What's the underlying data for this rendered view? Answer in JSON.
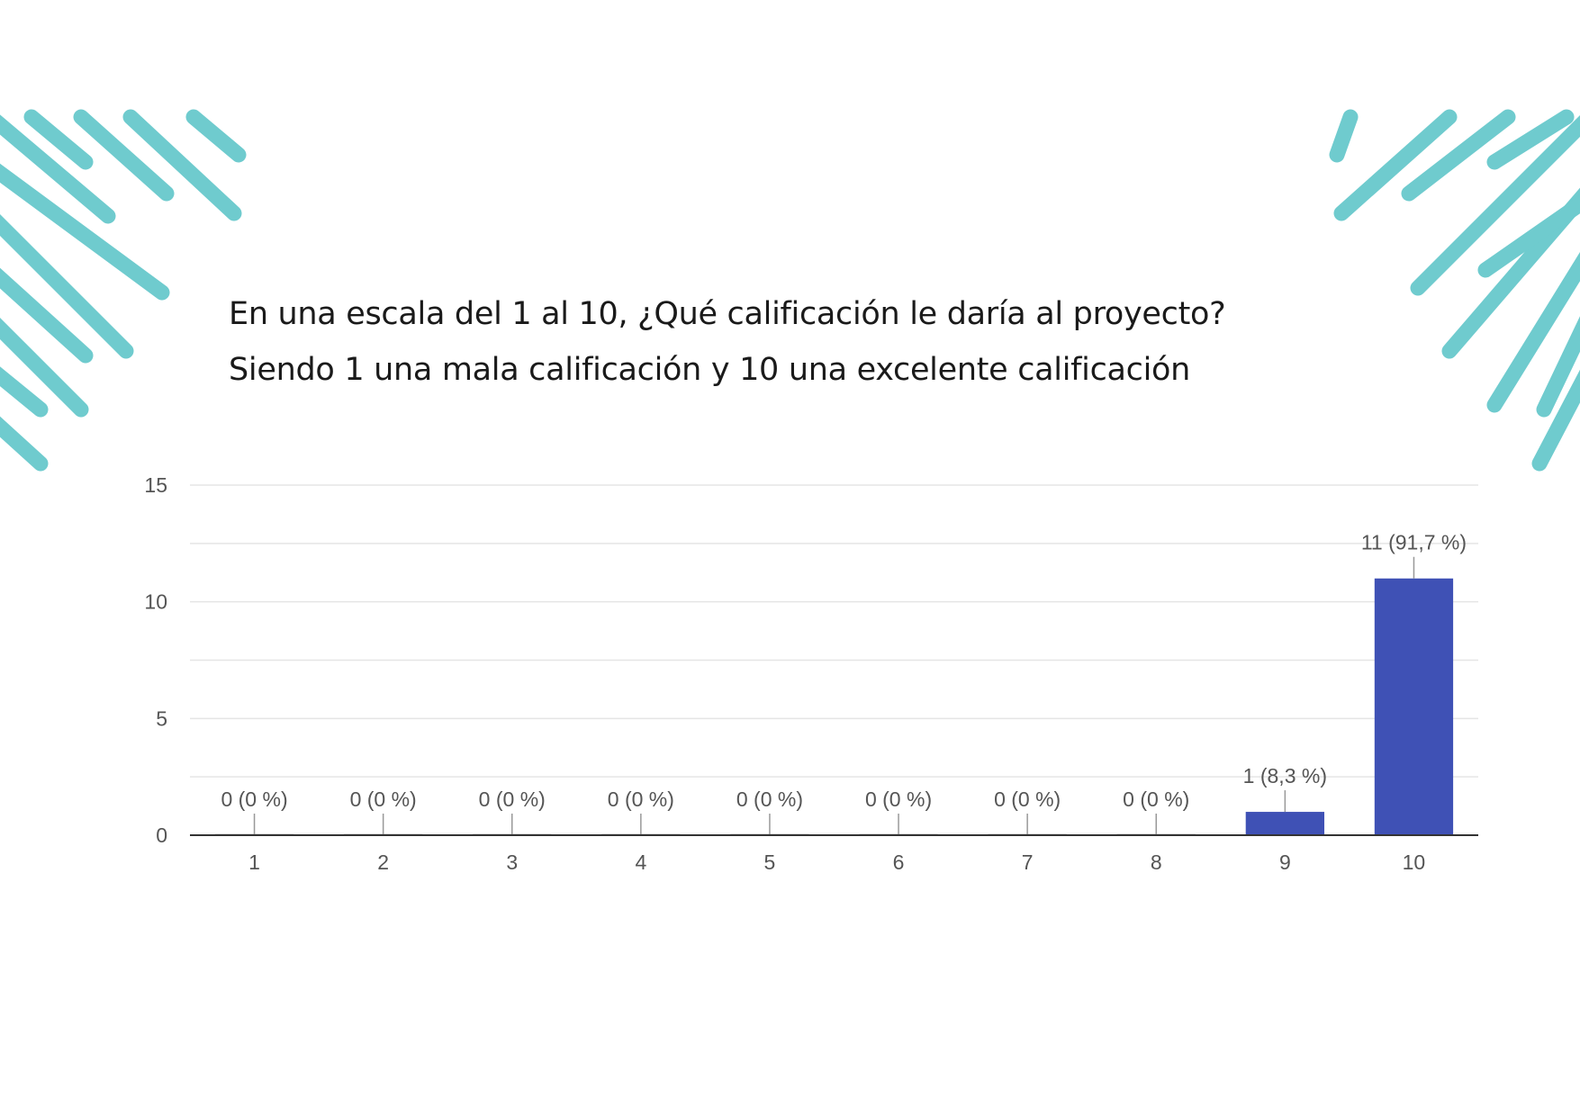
{
  "question": {
    "line1": "En una escala del 1 al 10, ¿Qué calificación le daría al proyecto?",
    "line2": "Siendo 1 una mala calificación y 10 una excelente calificación"
  },
  "colors": {
    "bar": "#3F51B5",
    "decoration": "#6FCBCE",
    "axis": "#333333",
    "grid": "#E5E5E5",
    "text": "#555555"
  },
  "chart_data": {
    "type": "bar",
    "title": "",
    "xlabel": "",
    "ylabel": "",
    "categories": [
      "1",
      "2",
      "3",
      "4",
      "5",
      "6",
      "7",
      "8",
      "9",
      "10"
    ],
    "values": [
      0,
      0,
      0,
      0,
      0,
      0,
      0,
      0,
      1,
      11
    ],
    "data_labels": [
      "0 (0 %)",
      "0 (0 %)",
      "0 (0 %)",
      "0 (0 %)",
      "0 (0 %)",
      "0 (0 %)",
      "0 (0 %)",
      "0 (0 %)",
      "1 (8,3 %)",
      "11 (91,7 %)"
    ],
    "yticks": [
      0,
      5,
      10,
      15
    ],
    "ylim": [
      0,
      15
    ],
    "grid": true,
    "legend": "none"
  }
}
